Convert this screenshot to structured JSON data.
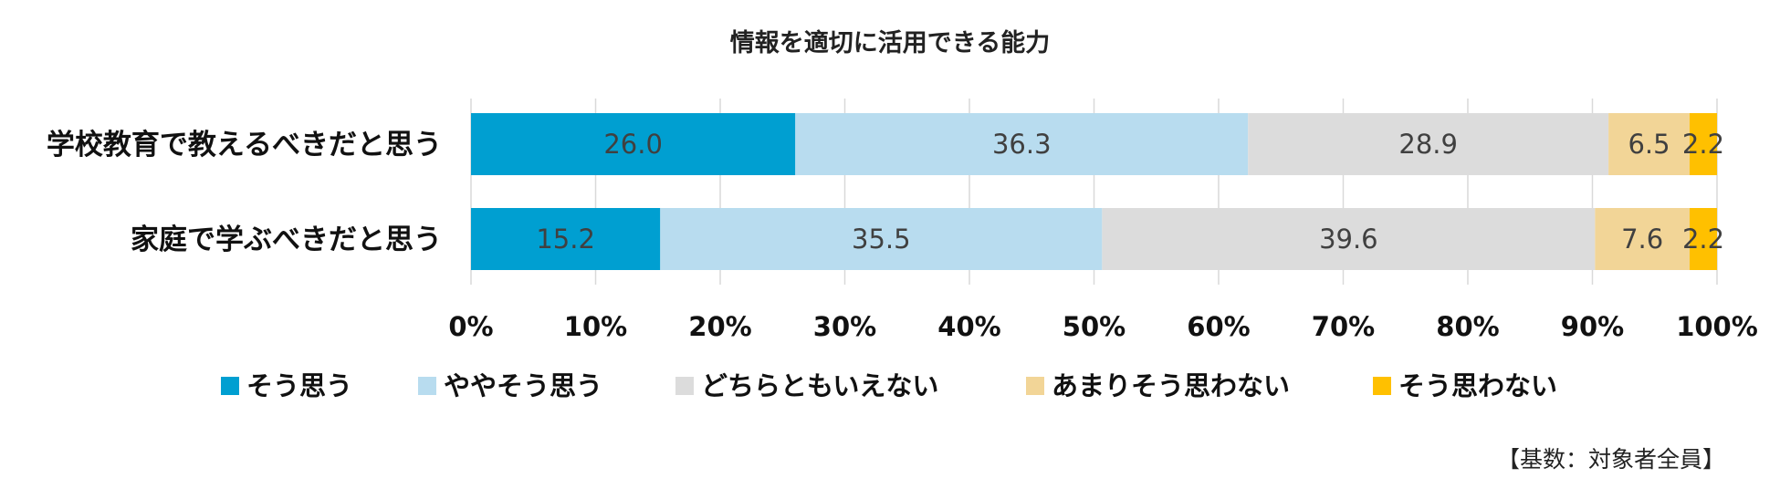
{
  "chart_data": {
    "type": "bar",
    "orientation": "horizontal",
    "stacked": "percent",
    "title": "情報を適切に活用できる能力",
    "categories": [
      "学校教育で教えるべきだと思う",
      "家庭で学ぶべきだと思う"
    ],
    "series": [
      {
        "name": "そう思う",
        "color": "#009fd1",
        "values": [
          26.0,
          15.2
        ],
        "labels": [
          "26.0",
          "15.2"
        ]
      },
      {
        "name": "ややそう思う",
        "color": "#b8dcef",
        "values": [
          36.3,
          35.5
        ],
        "labels": [
          "36.3",
          "35.5"
        ]
      },
      {
        "name": "どちらともいえない",
        "color": "#dcdcdc",
        "values": [
          28.9,
          39.6
        ],
        "labels": [
          "28.9",
          "39.6"
        ]
      },
      {
        "name": "あまりそう思わない",
        "color": "#f2d597",
        "values": [
          6.5,
          7.6
        ],
        "labels": [
          "6.5",
          "7.6"
        ]
      },
      {
        "name": "そう思わない",
        "color": "#ffc000",
        "values": [
          2.2,
          2.2
        ],
        "labels": [
          "2.2",
          "2.2"
        ]
      }
    ],
    "xlim": [
      0,
      100
    ],
    "xticks": [
      "0%",
      "10%",
      "20%",
      "30%",
      "40%",
      "50%",
      "60%",
      "70%",
      "80%",
      "90%",
      "100%"
    ],
    "grid": true,
    "legend_position": "bottom"
  },
  "footnote": "【基数：対象者全員】"
}
